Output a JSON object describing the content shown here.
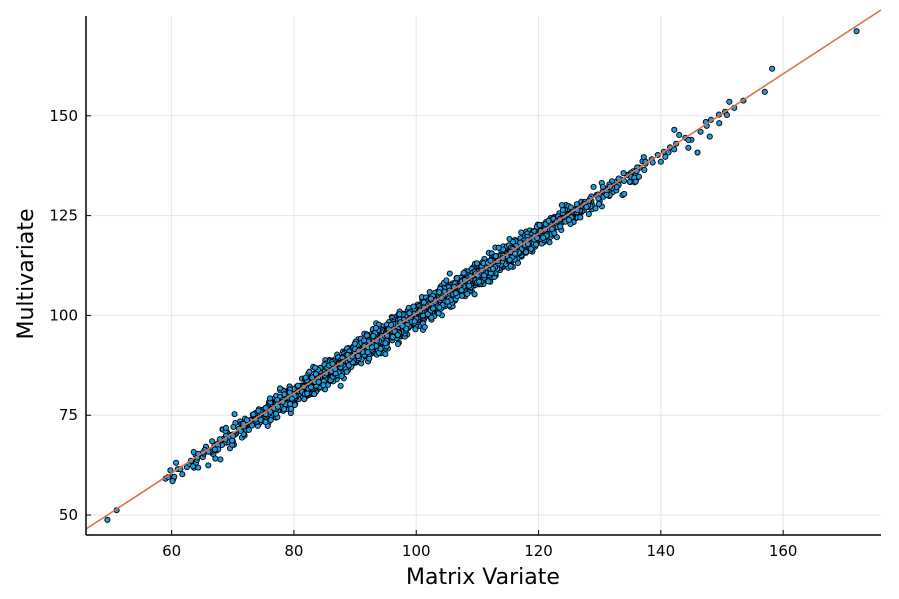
{
  "chart_data": {
    "type": "scatter",
    "xlabel": "Matrix Variate",
    "ylabel": "Multivariate",
    "xlim": [
      46,
      176
    ],
    "ylim": [
      45,
      175
    ],
    "xticks": [
      60,
      80,
      100,
      120,
      140,
      160
    ],
    "yticks": [
      50,
      75,
      100,
      125,
      150
    ],
    "grid": true,
    "legend": "none",
    "series": [
      {
        "kind": "points",
        "color": "#1f9be0",
        "edge_color": "#000000",
        "points": [
          [
            49.5,
            48.8
          ],
          [
            51.0,
            51.2
          ],
          [
            59.0,
            59.1
          ],
          [
            60.0,
            59.6
          ],
          [
            59.8,
            61.2
          ],
          [
            61.0,
            61.5
          ],
          [
            62.5,
            62.0
          ],
          [
            63.2,
            63.4
          ],
          [
            64.0,
            63.1
          ],
          [
            65.1,
            64.5
          ],
          [
            66.0,
            66.2
          ],
          [
            67.0,
            67.4
          ],
          [
            68.5,
            68.2
          ],
          [
            69.4,
            70.1
          ],
          [
            70.5,
            70.3
          ],
          [
            71.2,
            71.8
          ],
          [
            72.4,
            72.9
          ],
          [
            73.5,
            74.0
          ],
          [
            74.6,
            75.2
          ],
          [
            75.5,
            75.0
          ],
          [
            76.4,
            77.1
          ],
          [
            77.6,
            78.4
          ],
          [
            78.5,
            79.0
          ],
          [
            79.5,
            80.2
          ],
          [
            80.6,
            81.0
          ],
          [
            81.5,
            82.4
          ],
          [
            82.4,
            83.1
          ],
          [
            83.5,
            84.0
          ],
          [
            84.5,
            85.1
          ],
          [
            85.4,
            86.3
          ],
          [
            86.5,
            87.0
          ],
          [
            87.5,
            88.1
          ],
          [
            88.4,
            89.4
          ],
          [
            89.5,
            90.1
          ],
          [
            90.5,
            91.0
          ],
          [
            91.4,
            92.2
          ],
          [
            92.5,
            93.1
          ],
          [
            93.5,
            94.4
          ],
          [
            94.5,
            95.0
          ],
          [
            95.5,
            96.2
          ],
          [
            96.4,
            97.1
          ],
          [
            97.5,
            98.0
          ],
          [
            98.5,
            99.2
          ],
          [
            99.5,
            100.1
          ],
          [
            100.5,
            101.0
          ],
          [
            101.5,
            102.2
          ],
          [
            102.4,
            103.1
          ],
          [
            103.5,
            104.1
          ],
          [
            104.5,
            105.0
          ],
          [
            105.5,
            106.2
          ],
          [
            106.5,
            107.0
          ],
          [
            107.5,
            108.1
          ],
          [
            108.5,
            109.2
          ],
          [
            109.5,
            110.0
          ],
          [
            110.5,
            111.1
          ],
          [
            111.5,
            112.0
          ],
          [
            112.5,
            113.2
          ],
          [
            113.5,
            114.0
          ],
          [
            114.5,
            115.1
          ],
          [
            115.5,
            116.2
          ],
          [
            116.5,
            117.0
          ],
          [
            117.5,
            118.1
          ],
          [
            118.5,
            119.0
          ],
          [
            119.5,
            120.2
          ],
          [
            120.5,
            121.1
          ],
          [
            121.5,
            122.0
          ],
          [
            122.5,
            123.1
          ],
          [
            123.5,
            124.0
          ],
          [
            124.5,
            125.2
          ],
          [
            125.5,
            126.1
          ],
          [
            126.5,
            127.0
          ],
          [
            127.5,
            128.1
          ],
          [
            128.5,
            129.0
          ],
          [
            129.5,
            130.2
          ],
          [
            130.5,
            131.1
          ],
          [
            131.5,
            132.0
          ],
          [
            132.5,
            133.1
          ],
          [
            133.5,
            134.0
          ],
          [
            134.5,
            135.2
          ],
          [
            135.5,
            136.1
          ],
          [
            136.5,
            137.0
          ],
          [
            137.5,
            138.0
          ],
          [
            138.5,
            139.1
          ],
          [
            139.5,
            140.2
          ],
          [
            140.5,
            141.0
          ],
          [
            141.5,
            142.1
          ],
          [
            142.5,
            143.0
          ],
          [
            143.0,
            145.2
          ],
          [
            144.0,
            144.5
          ],
          [
            145.0,
            144.0
          ],
          [
            142.2,
            146.5
          ],
          [
            146.5,
            146.0
          ],
          [
            147.5,
            147.5
          ],
          [
            148.2,
            149.0
          ],
          [
            149.5,
            150.3
          ],
          [
            150.5,
            151.0
          ],
          [
            151.2,
            153.5
          ],
          [
            152.0,
            152.0
          ],
          [
            150.8,
            150.2
          ],
          [
            153.5,
            153.8
          ],
          [
            144.5,
            142.0
          ],
          [
            146.0,
            140.8
          ],
          [
            148.0,
            144.8
          ],
          [
            157.0,
            156.0
          ],
          [
            158.2,
            161.8
          ],
          [
            172.0,
            171.2
          ],
          [
            70.0,
            68.5
          ],
          [
            75.0,
            73.5
          ],
          [
            80.0,
            78.6
          ],
          [
            85.0,
            83.5
          ],
          [
            90.0,
            88.4
          ],
          [
            95.0,
            93.5
          ],
          [
            100.0,
            98.5
          ],
          [
            105.0,
            103.4
          ],
          [
            110.0,
            108.5
          ],
          [
            115.0,
            113.4
          ],
          [
            120.0,
            118.5
          ],
          [
            125.0,
            123.5
          ],
          [
            130.0,
            128.6
          ],
          [
            135.0,
            133.4
          ],
          [
            140.0,
            138.5
          ],
          [
            72.0,
            73.5
          ],
          [
            77.0,
            78.6
          ],
          [
            82.0,
            83.5
          ],
          [
            87.0,
            88.6
          ],
          [
            92.0,
            93.4
          ],
          [
            97.0,
            98.6
          ],
          [
            102.0,
            103.6
          ],
          [
            107.0,
            108.5
          ],
          [
            112.0,
            113.6
          ],
          [
            117.0,
            118.5
          ],
          [
            122.0,
            123.6
          ],
          [
            127.0,
            128.5
          ],
          [
            132.0,
            133.6
          ],
          [
            137.0,
            138.6
          ],
          [
            108.0,
            104.8
          ],
          [
            96.0,
            99.6
          ],
          [
            104.0,
            107.2
          ],
          [
            113.0,
            110.0
          ],
          [
            118.0,
            121.0
          ],
          [
            123.0,
            119.6
          ],
          [
            129.0,
            132.2
          ],
          [
            91.0,
            88.0
          ],
          [
            86.0,
            88.6
          ],
          [
            101.0,
            104.0
          ],
          [
            119.0,
            116.0
          ],
          [
            94.0,
            97.0
          ],
          [
            88.0,
            85.6
          ]
        ]
      },
      {
        "kind": "line",
        "color": "#e2704a",
        "points": [
          [
            46,
            46.5
          ],
          [
            176,
            176.5
          ]
        ]
      }
    ]
  }
}
